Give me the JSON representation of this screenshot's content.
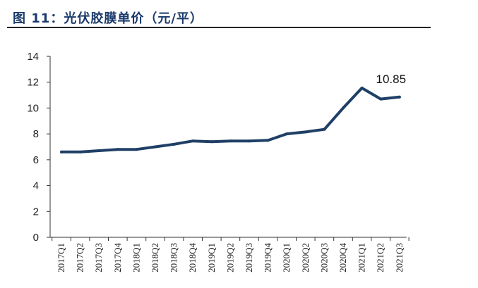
{
  "figure": {
    "title": "图 11：光伏胶膜单价（元/平）"
  },
  "colors": {
    "line": "#1f3f66",
    "title": "#1a3a6b",
    "axis": "#333333"
  },
  "chart_data": {
    "type": "line",
    "title": "",
    "xlabel": "",
    "ylabel": "",
    "ylim": [
      0,
      14
    ],
    "yticks": [
      0,
      2,
      4,
      6,
      8,
      10,
      12,
      14
    ],
    "grid": false,
    "legend": "none",
    "categories": [
      "2017Q1",
      "2017Q2",
      "2017Q3",
      "2017Q4",
      "2018Q1",
      "2018Q2",
      "2018Q3",
      "2018Q4",
      "2019Q1",
      "2019Q2",
      "2019Q3",
      "2019Q4",
      "2020Q1",
      "2020Q2",
      "2020Q3",
      "2020Q4",
      "2021Q1",
      "2021Q2",
      "2021Q3"
    ],
    "series": [
      {
        "values": [
          6.6,
          6.6,
          6.7,
          6.8,
          6.8,
          7.0,
          7.2,
          7.45,
          7.4,
          7.45,
          7.45,
          7.5,
          8.0,
          8.15,
          8.35,
          10.0,
          11.55,
          10.7,
          10.85
        ]
      }
    ],
    "annotations": [
      {
        "text": "10.85",
        "category": "2021Q3",
        "value": 10.85
      }
    ]
  }
}
